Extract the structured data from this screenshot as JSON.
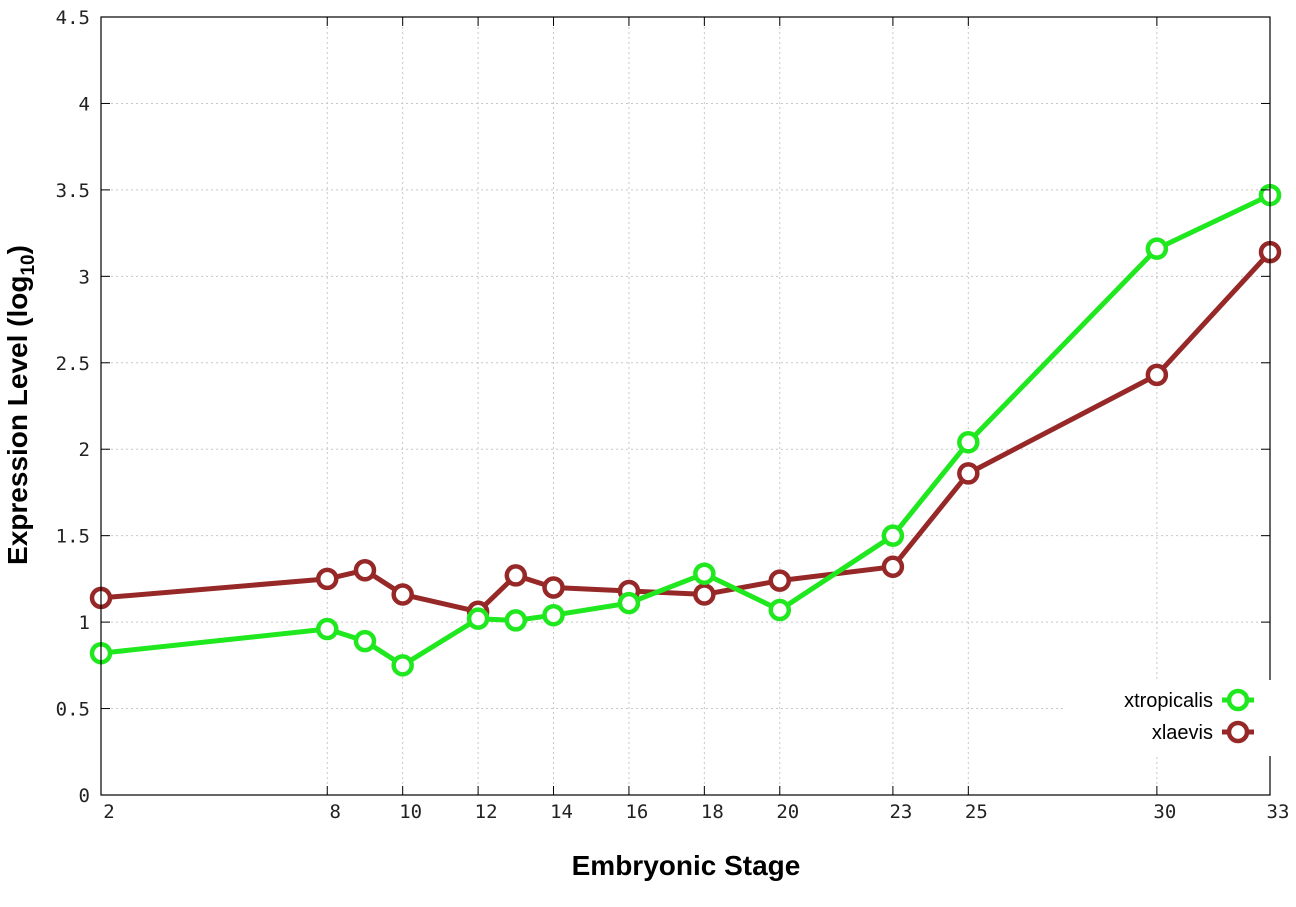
{
  "chart_data": {
    "type": "line",
    "title": "",
    "xlabel": "Embryonic Stage",
    "ylabel": "Expression Level (log",
    "ylabel_sub": "10",
    "ylabel_close": ")",
    "xlim": [
      2,
      33
    ],
    "ylim": [
      0,
      4.5
    ],
    "xticks": [
      2,
      8,
      10,
      12,
      14,
      16,
      18,
      20,
      23,
      25,
      30,
      33
    ],
    "yticks": [
      "0",
      "0.5",
      "1",
      "1.5",
      "2",
      "2.5",
      "3",
      "3.5",
      "4",
      "4.5"
    ],
    "grid": true,
    "legend_position": "bottom-right",
    "x": [
      2,
      8,
      9,
      10,
      12,
      13,
      14,
      16,
      18,
      20,
      23,
      25,
      30,
      33
    ],
    "series": [
      {
        "name": "xtropicalis",
        "color": "#1fe81f",
        "values": [
          0.82,
          0.96,
          0.89,
          0.75,
          1.02,
          1.01,
          1.04,
          1.11,
          1.28,
          1.07,
          1.5,
          2.04,
          3.16,
          3.47
        ]
      },
      {
        "name": "xlaevis",
        "color": "#962828",
        "values": [
          1.14,
          1.25,
          1.3,
          1.16,
          1.06,
          1.27,
          1.2,
          1.18,
          1.16,
          1.24,
          1.32,
          1.86,
          2.43,
          3.14
        ]
      }
    ]
  }
}
